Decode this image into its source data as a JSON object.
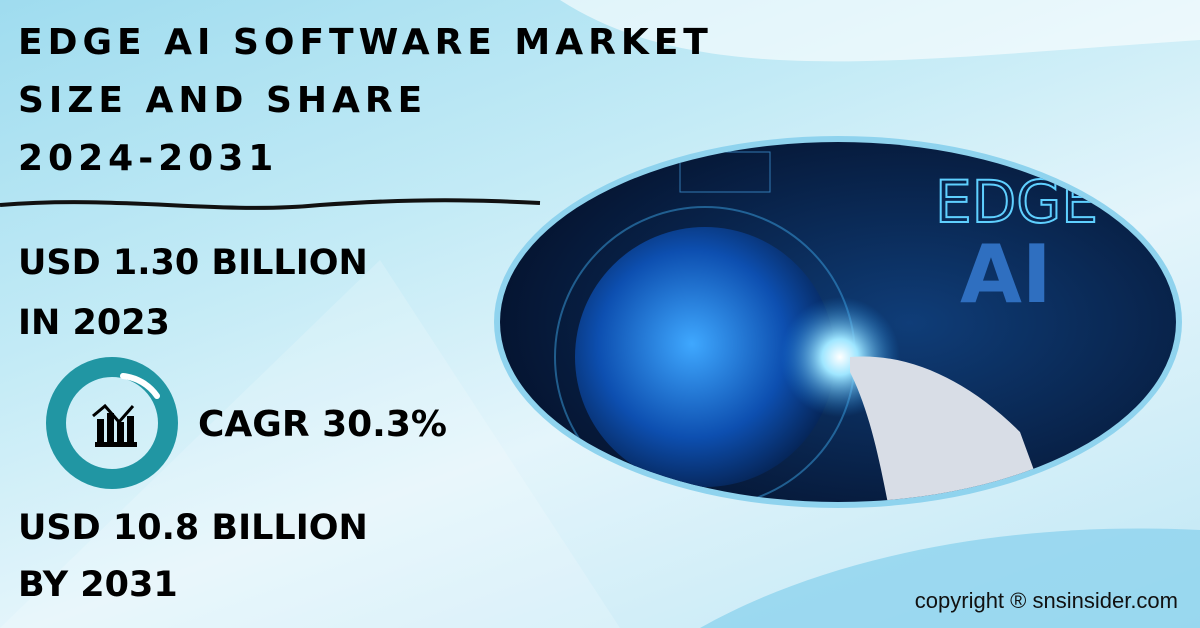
{
  "title": {
    "line1": "EDGE AI SOFTWARE MARKET",
    "line2": "SIZE AND SHARE",
    "line3": "2024-2031"
  },
  "stats": {
    "start_value": "USD 1.30 BILLION",
    "start_year": "IN 2023",
    "cagr": "CAGR 30.3%",
    "end_value": "USD 10.8 BILLION",
    "end_year": "BY 2031"
  },
  "image": {
    "text_line1": "EDGE",
    "text_line2": "AI"
  },
  "footer": {
    "copyright": "copyright ® snsinsider.com"
  },
  "icons": {
    "cagr": "chart-growth-icon"
  },
  "colors": {
    "ring": "#2196a3",
    "image_border": "#8fd3ee",
    "text": "#000000"
  }
}
